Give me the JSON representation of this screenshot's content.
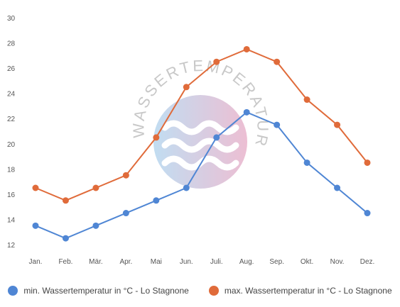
{
  "chart_data": {
    "type": "line",
    "title": "",
    "xlabel": "",
    "ylabel": "",
    "categories": [
      "Jan.",
      "Feb.",
      "Mär.",
      "Apr.",
      "Mai",
      "Jun.",
      "Juli.",
      "Aug.",
      "Sep.",
      "Okt.",
      "Nov.",
      "Dez."
    ],
    "ylim": [
      12,
      30
    ],
    "yticks": [
      12,
      14,
      16,
      18,
      20,
      22,
      24,
      26,
      28,
      30
    ],
    "grid": false,
    "legend_position": "bottom",
    "series": [
      {
        "name": "min. Wassertemperatur in °C - Lo Stagnone",
        "color": "#4f86d4",
        "values": [
          13.5,
          12.5,
          13.5,
          14.5,
          15.5,
          16.5,
          20.5,
          22.5,
          21.5,
          18.5,
          16.5,
          14.5
        ]
      },
      {
        "name": "max. Wassertemperatur in °C - Lo Stagnone",
        "color": "#e06b3a",
        "values": [
          16.5,
          15.5,
          16.5,
          17.5,
          20.5,
          24.5,
          26.5,
          27.5,
          26.5,
          23.5,
          21.5,
          18.5
        ]
      }
    ]
  },
  "watermark": {
    "text": "WASSERTEMPERATUR.ORG",
    "colors": [
      "#b6d7ef",
      "#e9b3cb"
    ],
    "text_color": "#c8c8c8"
  }
}
